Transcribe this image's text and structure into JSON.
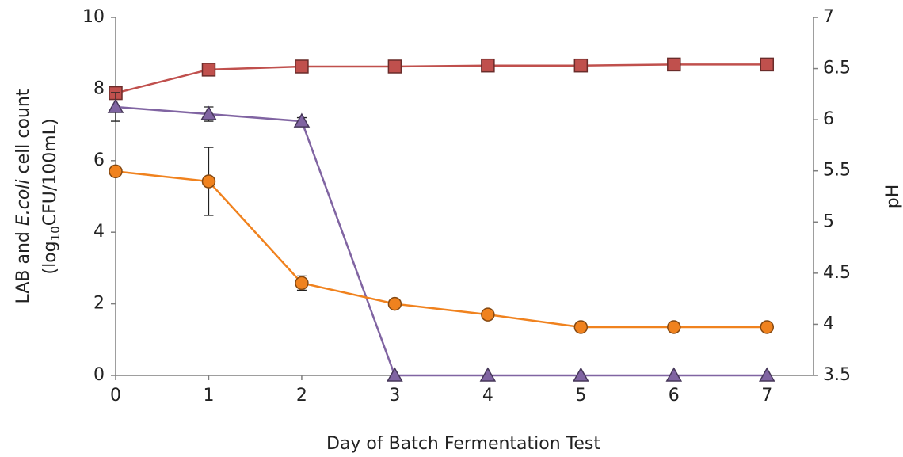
{
  "chart_data": {
    "type": "line",
    "x_label": "Day of Batch Fermentation Test",
    "y_label": [
      [
        "LAB and ",
        "E.coli",
        " cell count"
      ],
      [
        "(log",
        "10",
        "CFU/100mL)"
      ]
    ],
    "y2_label": "pH",
    "x": [
      0,
      1,
      2,
      3,
      4,
      5,
      6,
      7
    ],
    "xlim": [
      0,
      7.5
    ],
    "xticks": [
      0,
      1,
      2,
      3,
      4,
      5,
      6,
      7
    ],
    "ylim": [
      0,
      10
    ],
    "yticks": [
      0,
      2,
      4,
      6,
      8,
      10
    ],
    "y2lim": [
      3.5,
      7
    ],
    "y2ticks": [
      3.5,
      4,
      4.5,
      5,
      5.5,
      6,
      6.5,
      7
    ],
    "series": [
      {
        "color": "#c0504d",
        "marker": "square",
        "axis": "y2",
        "values": [
          6.26,
          6.49,
          6.52,
          6.52,
          6.53,
          6.53,
          6.54,
          6.54
        ]
      },
      {
        "color": "#8064a2",
        "marker": "triangle",
        "values": [
          7.5,
          7.3,
          7.1,
          0,
          0,
          0,
          0,
          0
        ],
        "errors": [
          0.4,
          0.2,
          0.1,
          0,
          0,
          0,
          0,
          0
        ]
      },
      {
        "color": "#f0821e",
        "marker": "circle",
        "values": [
          5.7,
          5.42,
          2.58,
          2.0,
          1.7,
          1.35,
          1.35,
          1.35
        ],
        "errors": [
          0.15,
          0.95,
          0.2,
          0.1,
          0,
          0,
          0,
          0
        ]
      }
    ]
  }
}
